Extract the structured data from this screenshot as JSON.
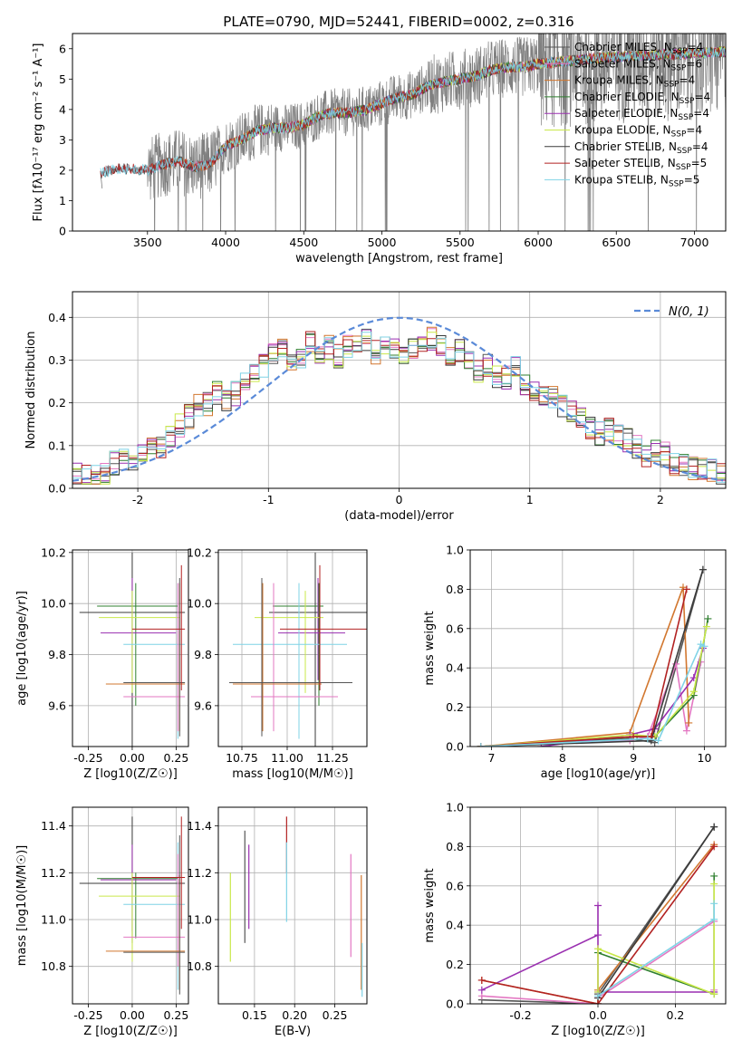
{
  "figure_title": "PLATE=0790, MJD=52441, FIBERID=0002, z=0.316",
  "colors": {
    "chabrier_miles": "#555555",
    "salpeter_miles": "#e377c2",
    "kroupa_miles": "#d2772f",
    "chabrier_elodie": "#2f7f2f",
    "salpeter_elodie": "#9a2fb0",
    "kroupa_elodie": "#c9e84a",
    "chabrier_stelib": "#3a3a3a",
    "salpeter_stelib": "#b22222",
    "kroupa_stelib": "#7fd3e6",
    "data_gray": "#808080",
    "normal_curve": "#5a8ad8",
    "grid": "#b0b0b0"
  },
  "chart_data": [
    {
      "id": "spectrum",
      "type": "line",
      "title": "PLATE=0790, MJD=52441, FIBERID=0002, z=0.316",
      "xlabel": "wavelength [Angstrom, rest frame]",
      "ylabel": "Flux [fλ10⁻¹⁷ erg cm⁻² s⁻¹ A⁻¹]",
      "xlim": [
        3020,
        7200
      ],
      "ylim": [
        0,
        6.5
      ],
      "xticks": [
        3500,
        4000,
        4500,
        5000,
        5500,
        6000,
        6500,
        7000
      ],
      "yticks": [
        0,
        1,
        2,
        3,
        4,
        5,
        6
      ],
      "grid": false,
      "legend_position": "top-right",
      "legend": [
        {
          "label": "Chabrier MILES, N_SSP=4",
          "color": "#555555"
        },
        {
          "label": "Salpeter MILES, N_SSP=6",
          "color": "#e377c2"
        },
        {
          "label": "Kroupa MILES, N_SSP=4",
          "color": "#d2772f"
        },
        {
          "label": "Chabrier ELODIE, N_SSP=4",
          "color": "#2f7f2f"
        },
        {
          "label": "Salpeter ELODIE, N_SSP=4",
          "color": "#9a2fb0"
        },
        {
          "label": "Kroupa ELODIE, N_SSP=4",
          "color": "#c9e84a"
        },
        {
          "label": "Chabrier STELIB, N_SSP=4",
          "color": "#3a3a3a"
        },
        {
          "label": "Salpeter STELIB, N_SSP=5",
          "color": "#b22222"
        },
        {
          "label": "Kroupa STELIB, N_SSP=5",
          "color": "#7fd3e6"
        }
      ],
      "model_continuum": {
        "x": [
          3200,
          3300,
          3400,
          3500,
          3600,
          3700,
          3800,
          3900,
          4000,
          4100,
          4200,
          4300,
          4400,
          4500,
          4600,
          4700,
          4800,
          4900,
          5000,
          5100,
          5200,
          5300,
          5400,
          5500,
          5600,
          5700,
          5800,
          5900,
          6000,
          6200,
          6400,
          6600,
          6800,
          7000,
          7200
        ],
        "y": [
          1.9,
          2.05,
          2.05,
          2.0,
          2.2,
          2.3,
          2.1,
          2.2,
          2.8,
          3.0,
          3.3,
          3.4,
          3.4,
          3.5,
          3.8,
          3.9,
          3.9,
          4.0,
          4.2,
          4.4,
          4.5,
          4.8,
          4.9,
          5.0,
          5.1,
          5.3,
          5.4,
          5.4,
          5.5,
          5.6,
          5.7,
          5.75,
          5.8,
          5.85,
          5.9
        ]
      }
    },
    {
      "id": "residuals",
      "type": "line",
      "xlabel": "(data-model)/error",
      "ylabel": "Normed distribution",
      "xlim": [
        -2.5,
        2.5
      ],
      "ylim": [
        0,
        0.46
      ],
      "xticks": [
        -2,
        -1,
        0,
        1,
        2
      ],
      "yticks": [
        0.0,
        0.1,
        0.2,
        0.3,
        0.4
      ],
      "grid": true,
      "legend_position": "top-right",
      "legend": [
        {
          "label": "N(0, 1)",
          "color": "#5a8ad8",
          "style": "dashed"
        }
      ],
      "bin_width": 0.1,
      "bin_start": -2.5,
      "base_hist": [
        0.03,
        0.032,
        0.025,
        0.03,
        0.06,
        0.07,
        0.07,
        0.08,
        0.11,
        0.1,
        0.12,
        0.15,
        0.17,
        0.19,
        0.2,
        0.22,
        0.21,
        0.22,
        0.24,
        0.27,
        0.29,
        0.31,
        0.32,
        0.3,
        0.31,
        0.34,
        0.31,
        0.33,
        0.31,
        0.33,
        0.33,
        0.35,
        0.32,
        0.34,
        0.33,
        0.32,
        0.33,
        0.35,
        0.35,
        0.33,
        0.3,
        0.32,
        0.3,
        0.27,
        0.29,
        0.26,
        0.26,
        0.28,
        0.24,
        0.23,
        0.21,
        0.21,
        0.19,
        0.18,
        0.16,
        0.14,
        0.13,
        0.14,
        0.12,
        0.11,
        0.1,
        0.08,
        0.09,
        0.08,
        0.06,
        0.06,
        0.05,
        0.05,
        0.04,
        0.03
      ]
    },
    {
      "id": "age_vs_Z",
      "type": "scatter",
      "xlabel": "Z [log10(Z/Z☉)]",
      "ylabel": "age [log10(age/yr)]",
      "xlim": [
        -0.34,
        0.32
      ],
      "ylim": [
        9.44,
        10.21
      ],
      "xticks": [
        -0.25,
        0.0,
        0.25
      ],
      "yticks": [
        9.6,
        9.8,
        10.0,
        10.2
      ],
      "grid": true
    },
    {
      "id": "age_vs_mass",
      "type": "scatter",
      "xlabel": "mass [log10(M/M☉)]",
      "xlim": [
        10.62,
        11.44
      ],
      "ylim": [
        9.44,
        10.21
      ],
      "xticks": [
        10.75,
        11.0,
        11.25
      ],
      "yticks": [
        9.6,
        9.8,
        10.0,
        10.2
      ],
      "grid": true
    },
    {
      "id": "weight_vs_age",
      "type": "line",
      "xlabel": "age [log10(age/yr)]",
      "ylabel": "mass weight",
      "xlim": [
        6.7,
        10.3
      ],
      "ylim": [
        0,
        1
      ],
      "xticks": [
        7,
        8,
        9,
        10
      ],
      "yticks": [
        0.0,
        0.2,
        0.4,
        0.6,
        0.8,
        1.0
      ],
      "grid": true,
      "series": [
        {
          "color": "#555555",
          "x": [
            6.85,
            8.95,
            9.3,
            9.98
          ],
          "y": [
            0.0,
            0.04,
            0.02,
            0.9
          ]
        },
        {
          "color": "#e377c2",
          "x": [
            6.85,
            8.95,
            9.2,
            9.6,
            9.75,
            9.95
          ],
          "y": [
            0.0,
            0.03,
            0.05,
            0.42,
            0.08,
            0.43
          ]
        },
        {
          "color": "#d2772f",
          "x": [
            6.85,
            8.95,
            9.7,
            9.78
          ],
          "y": [
            0.0,
            0.07,
            0.81,
            0.12
          ]
        },
        {
          "color": "#2f7f2f",
          "x": [
            6.85,
            9.05,
            9.3,
            9.85,
            10.05
          ],
          "y": [
            0.0,
            0.05,
            0.05,
            0.26,
            0.65
          ]
        },
        {
          "color": "#9a2fb0",
          "x": [
            7.7,
            8.95,
            9.3,
            9.85,
            9.98
          ],
          "y": [
            0.0,
            0.06,
            0.09,
            0.35,
            0.5
          ]
        },
        {
          "color": "#c9e84a",
          "x": [
            6.85,
            9.0,
            9.3,
            9.85,
            10.03
          ],
          "y": [
            0.0,
            0.06,
            0.05,
            0.28,
            0.61
          ]
        },
        {
          "color": "#3a3a3a",
          "x": [
            6.85,
            9.25,
            9.98
          ],
          "y": [
            0.0,
            0.03,
            0.9
          ]
        },
        {
          "color": "#b22222",
          "x": [
            6.85,
            9.0,
            9.25,
            9.75
          ],
          "y": [
            0.0,
            0.05,
            0.05,
            0.8
          ]
        },
        {
          "color": "#7fd3e6",
          "x": [
            6.85,
            9.2,
            9.35,
            9.95,
            10.0
          ],
          "y": [
            0.0,
            0.04,
            0.03,
            0.52,
            0.51
          ]
        }
      ]
    },
    {
      "id": "mass_vs_Z",
      "type": "scatter",
      "xlabel": "Z [log10(Z/Z☉)]",
      "ylabel": "mass [log10(M/M☉)]",
      "xlim": [
        -0.34,
        0.32
      ],
      "ylim": [
        10.64,
        11.48
      ],
      "xticks": [
        -0.25,
        0.0,
        0.25
      ],
      "yticks": [
        10.8,
        11.0,
        11.2,
        11.4
      ],
      "grid": true
    },
    {
      "id": "mass_vs_ebv",
      "type": "scatter",
      "xlabel": "E(B-V)",
      "xlim": [
        0.105,
        0.29
      ],
      "ylim": [
        10.64,
        11.48
      ],
      "xticks": [
        0.15,
        0.2,
        0.25
      ],
      "yticks": [
        10.8,
        11.0,
        11.2,
        11.4
      ],
      "grid": true,
      "points": [
        {
          "color": "#c9e84a",
          "x": 0.12,
          "y": 11.0,
          "lo": 10.82,
          "hi": 11.2
        },
        {
          "color": "#555555",
          "x": 0.138,
          "y": 11.15,
          "lo": 10.9,
          "hi": 11.38
        },
        {
          "color": "#9a2fb0",
          "x": 0.143,
          "y": 11.18,
          "lo": 10.96,
          "hi": 11.32
        },
        {
          "color": "#b22222",
          "x": 0.19,
          "y": 11.3,
          "lo": 11.2,
          "hi": 11.44
        },
        {
          "color": "#7fd3e6",
          "x": 0.19,
          "y": 11.15,
          "lo": 10.99,
          "hi": 11.33
        },
        {
          "color": "#e377c2",
          "x": 0.27,
          "y": 11.05,
          "lo": 10.84,
          "hi": 11.28
        },
        {
          "color": "#d2772f",
          "x": 0.283,
          "y": 10.9,
          "lo": 10.7,
          "hi": 11.19
        },
        {
          "color": "#7fd3e6",
          "x": 0.284,
          "y": 10.8,
          "lo": 10.67,
          "hi": 10.9
        }
      ]
    },
    {
      "id": "weight_vs_Z",
      "type": "line",
      "xlabel": "Z [log10(Z/Z☉)]",
      "ylabel": "mass weight",
      "xlim": [
        -0.33,
        0.33
      ],
      "ylim": [
        0,
        1
      ],
      "xticks": [
        -0.2,
        0.0,
        0.2
      ],
      "yticks": [
        0.0,
        0.2,
        0.4,
        0.6,
        0.8,
        1.0
      ],
      "grid": true,
      "series": [
        {
          "color": "#555555",
          "x": [
            -0.3,
            0.0,
            0.0,
            0.3
          ],
          "y": [
            0.02,
            0.0,
            0.05,
            0.9
          ]
        },
        {
          "color": "#e377c2",
          "x": [
            -0.3,
            0.0,
            0.0,
            0.3,
            0.3
          ],
          "y": [
            0.04,
            0.0,
            0.03,
            0.42,
            0.07
          ]
        },
        {
          "color": "#d2772f",
          "x": [
            -0.3,
            0.0,
            0.0,
            0.3
          ],
          "y": [
            0.12,
            0.0,
            0.07,
            0.81
          ]
        },
        {
          "color": "#2f7f2f",
          "x": [
            0.0,
            0.3,
            0.3
          ],
          "y": [
            0.26,
            0.05,
            0.65
          ]
        },
        {
          "color": "#9a2fb0",
          "x": [
            -0.3,
            0.0,
            0.0,
            0.0,
            0.3
          ],
          "y": [
            0.07,
            0.35,
            0.5,
            0.06,
            0.06
          ]
        },
        {
          "color": "#c9e84a",
          "x": [
            0.0,
            0.0,
            0.3,
            0.3
          ],
          "y": [
            0.06,
            0.28,
            0.05,
            0.61
          ]
        },
        {
          "color": "#3a3a3a",
          "x": [
            0.0,
            0.3
          ],
          "y": [
            0.03,
            0.9
          ]
        },
        {
          "color": "#b22222",
          "x": [
            -0.3,
            0.0,
            0.3
          ],
          "y": [
            0.12,
            0.0,
            0.8
          ]
        },
        {
          "color": "#7fd3e6",
          "x": [
            0.0,
            0.3,
            0.3
          ],
          "y": [
            0.04,
            0.43,
            0.51
          ]
        }
      ]
    }
  ],
  "ssp_components": {
    "colors": [
      "#555555",
      "#e377c2",
      "#d2772f",
      "#2f7f2f",
      "#9a2fb0",
      "#c9e84a",
      "#3a3a3a",
      "#b22222",
      "#7fd3e6"
    ],
    "items": [
      {
        "color": "#3a3a3a",
        "Z": 0.0,
        "Zlo": -0.3,
        "Zhi": 0.3,
        "age": 9.965,
        "alo": 9.44,
        "ahi": 10.2,
        "mass": 11.155,
        "mlo": 10.9,
        "mhi": 11.44
      },
      {
        "color": "#2f7f2f",
        "Z": 0.02,
        "Zlo": -0.2,
        "Zhi": 0.26,
        "age": 9.99,
        "alo": 9.6,
        "ahi": 10.08,
        "mass": 11.175,
        "mlo": 10.92,
        "mhi": 11.2
      },
      {
        "color": "#9a2fb0",
        "Z": 0.0,
        "Zlo": -0.18,
        "Zhi": 0.25,
        "age": 9.885,
        "alo": 9.7,
        "ahi": 10.1,
        "mass": 11.17,
        "mlo": 10.95,
        "mhi": 11.32
      },
      {
        "color": "#c9e84a",
        "Z": 0.0,
        "Zlo": -0.19,
        "Zhi": 0.27,
        "age": 9.945,
        "alo": 9.65,
        "ahi": 10.05,
        "mass": 11.1,
        "mlo": 10.82,
        "mhi": 11.2
      },
      {
        "color": "#7fd3e6",
        "Z": 0.26,
        "Zlo": -0.05,
        "Zhi": 0.3,
        "age": 9.84,
        "alo": 9.47,
        "ahi": 10.08,
        "mass": 11.065,
        "mlo": 10.7,
        "mhi": 11.33
      },
      {
        "color": "#e377c2",
        "Z": 0.26,
        "Zlo": -0.05,
        "Zhi": 0.3,
        "age": 9.635,
        "alo": 9.5,
        "ahi": 10.08,
        "mass": 10.925,
        "mlo": 10.8,
        "mhi": 11.28
      },
      {
        "color": "#d2772f",
        "Z": 0.27,
        "Zlo": -0.15,
        "Zhi": 0.3,
        "age": 9.685,
        "alo": 9.5,
        "ahi": 10.08,
        "mass": 10.865,
        "mlo": 10.7,
        "mhi": 11.19
      },
      {
        "color": "#555555",
        "Z": 0.27,
        "Zlo": -0.05,
        "Zhi": 0.3,
        "age": 9.69,
        "alo": 9.48,
        "ahi": 10.1,
        "mass": 10.86,
        "mlo": 10.68,
        "mhi": 11.36
      },
      {
        "color": "#b22222",
        "Z": 0.28,
        "Zlo": 0.0,
        "Zhi": 0.3,
        "age": 9.9,
        "alo": 9.66,
        "ahi": 10.15,
        "mass": 11.18,
        "mlo": 10.96,
        "mhi": 11.44
      }
    ]
  }
}
